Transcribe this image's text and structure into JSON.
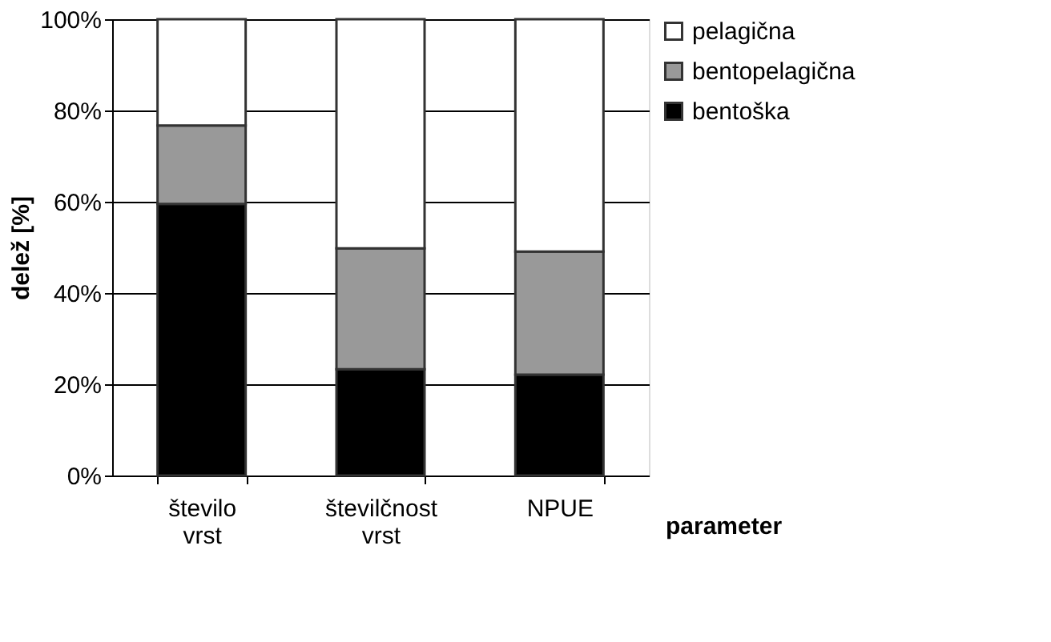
{
  "chart_data": {
    "type": "bar",
    "stacked": true,
    "xlabel": "parameter",
    "ylabel": "delež [%]",
    "categories": [
      "število vrst",
      "številčnost vrst",
      "NPUE"
    ],
    "series": [
      {
        "name": "bentoška",
        "color": "#000000",
        "values": [
          59.5,
          23.3,
          22.1
        ]
      },
      {
        "name": "bentopelagična",
        "color": "#999999",
        "values": [
          17.2,
          26.5,
          27.0
        ]
      },
      {
        "name": "pelagična",
        "color": "#ffffff",
        "values": [
          23.3,
          50.2,
          50.9
        ]
      }
    ],
    "ylim": [
      0,
      100
    ],
    "yticks": [
      {
        "value": 0,
        "label": "0%"
      },
      {
        "value": 20,
        "label": "20%"
      },
      {
        "value": 40,
        "label": "40%"
      },
      {
        "value": 60,
        "label": "60%"
      },
      {
        "value": 80,
        "label": "80%"
      },
      {
        "value": 100,
        "label": "100%"
      }
    ],
    "grid": "y",
    "legend": "right"
  }
}
